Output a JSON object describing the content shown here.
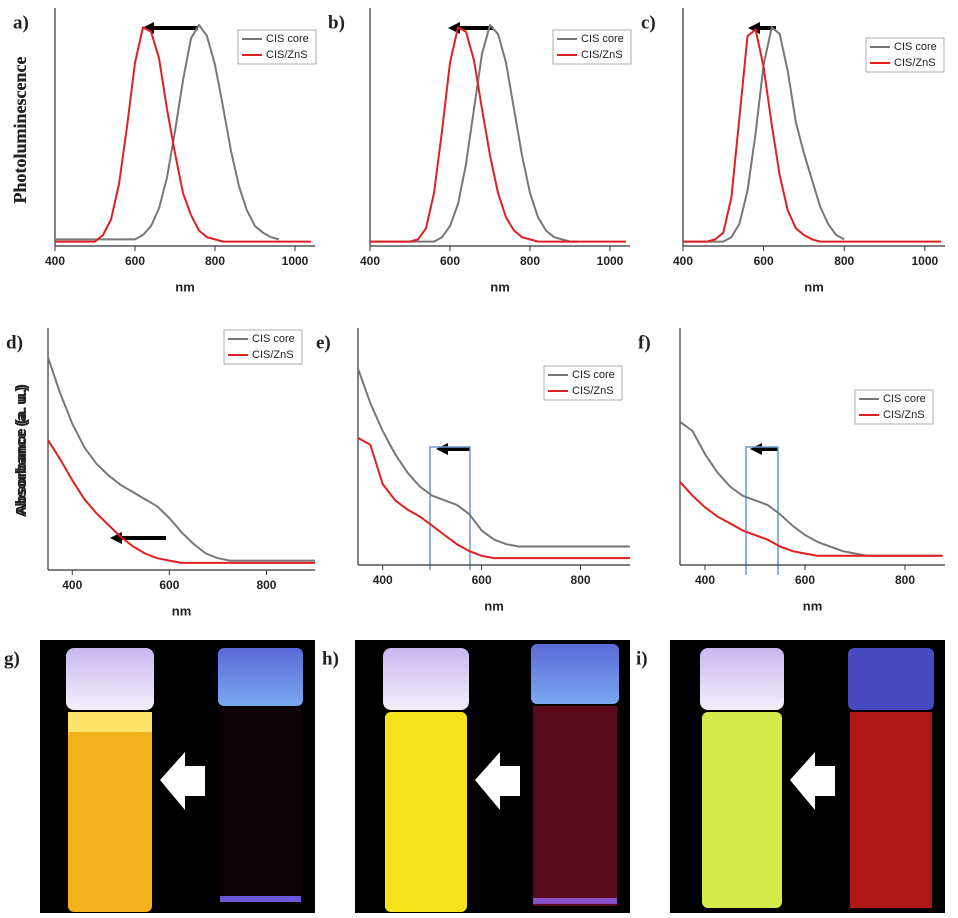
{
  "chart_data": [
    {
      "type": "line",
      "label": "a)",
      "ylabel": "Photoluminescence",
      "xlabel": "nm",
      "x": [
        400,
        420,
        440,
        460,
        480,
        500,
        520,
        540,
        560,
        580,
        600,
        620,
        640,
        660,
        680,
        700,
        720,
        740,
        760,
        780,
        800,
        820,
        840,
        860,
        880,
        900,
        920,
        940,
        960,
        980,
        1000,
        1020,
        1040
      ],
      "xlim": [
        400,
        1050
      ],
      "xticks": [
        400,
        600,
        800,
        1000
      ],
      "ylim": [
        0,
        1.05
      ],
      "series": [
        {
          "name": "CIS core",
          "color": "#777777",
          "values": [
            0.03,
            0.03,
            0.03,
            0.03,
            0.03,
            0.03,
            0.03,
            0.03,
            0.03,
            0.03,
            0.03,
            0.05,
            0.09,
            0.17,
            0.31,
            0.52,
            0.75,
            0.94,
            1.0,
            0.95,
            0.82,
            0.63,
            0.43,
            0.27,
            0.16,
            0.09,
            0.06,
            0.04,
            0.03,
            null,
            null,
            null,
            null
          ]
        },
        {
          "name": "CIS/ZnS",
          "color": "#e02020",
          "values": [
            0.02,
            0.02,
            0.02,
            0.02,
            0.02,
            0.02,
            0.05,
            0.12,
            0.28,
            0.54,
            0.83,
            0.99,
            0.97,
            0.85,
            0.62,
            0.42,
            0.24,
            0.14,
            0.07,
            0.04,
            0.03,
            0.02,
            0.02,
            0.02,
            0.02,
            0.02,
            0.02,
            0.02,
            0.02,
            0.02,
            0.02,
            0.02,
            0.02
          ]
        }
      ]
    },
    {
      "type": "line",
      "label": "b)",
      "ylabel": "Photoluminescence",
      "xlabel": "nm",
      "x": [
        400,
        420,
        440,
        460,
        480,
        500,
        520,
        540,
        560,
        580,
        600,
        620,
        640,
        660,
        680,
        700,
        720,
        740,
        760,
        780,
        800,
        820,
        840,
        860,
        880,
        900,
        920,
        940,
        960,
        980,
        1000,
        1020,
        1040
      ],
      "xlim": [
        400,
        1050
      ],
      "xticks": [
        400,
        600,
        800,
        1000
      ],
      "ylim": [
        0,
        1.05
      ],
      "series": [
        {
          "name": "CIS core",
          "color": "#777777",
          "values": [
            0.02,
            0.02,
            0.02,
            0.02,
            0.02,
            0.02,
            0.02,
            0.02,
            0.02,
            0.04,
            0.09,
            0.19,
            0.37,
            0.62,
            0.87,
            1.0,
            0.96,
            0.83,
            0.62,
            0.41,
            0.24,
            0.13,
            0.07,
            0.04,
            0.03,
            0.02,
            0.02,
            null,
            null,
            null,
            null,
            null,
            null
          ]
        },
        {
          "name": "CIS/ZnS",
          "color": "#e02020",
          "values": [
            0.02,
            0.02,
            0.02,
            0.02,
            0.02,
            0.02,
            0.03,
            0.08,
            0.24,
            0.52,
            0.83,
            0.99,
            0.97,
            0.84,
            0.62,
            0.41,
            0.24,
            0.13,
            0.07,
            0.04,
            0.03,
            0.02,
            0.02,
            0.02,
            0.02,
            0.02,
            0.02,
            0.02,
            0.02,
            0.02,
            0.02,
            0.02,
            0.02
          ]
        }
      ]
    },
    {
      "type": "line",
      "label": "c)",
      "ylabel": "Photoluminescence",
      "xlabel": "nm",
      "x": [
        400,
        420,
        440,
        460,
        480,
        500,
        520,
        540,
        560,
        580,
        600,
        620,
        640,
        660,
        680,
        700,
        720,
        740,
        760,
        780,
        800,
        820,
        840,
        860,
        880,
        900,
        920,
        940,
        960,
        980,
        1000,
        1020,
        1040
      ],
      "xlim": [
        400,
        1050
      ],
      "xticks": [
        400,
        600,
        800,
        1000
      ],
      "ylim": [
        0,
        1.05
      ],
      "series": [
        {
          "name": "CIS core",
          "color": "#777777",
          "values": [
            0.02,
            0.02,
            0.02,
            0.02,
            0.02,
            0.02,
            0.04,
            0.1,
            0.25,
            0.51,
            0.82,
            0.99,
            0.96,
            0.79,
            0.56,
            0.42,
            0.3,
            0.18,
            0.1,
            0.05,
            0.03,
            null,
            null,
            null,
            null,
            null,
            null,
            null,
            null,
            null,
            null,
            null,
            null
          ]
        },
        {
          "name": "CIS/ZnS",
          "color": "#e02020",
          "values": [
            0.02,
            0.02,
            0.02,
            0.02,
            0.03,
            0.06,
            0.22,
            0.58,
            0.95,
            0.98,
            0.81,
            0.55,
            0.32,
            0.16,
            0.08,
            0.05,
            0.03,
            0.02,
            0.02,
            0.02,
            0.02,
            0.02,
            0.02,
            0.02,
            0.02,
            0.02,
            0.02,
            0.02,
            0.02,
            0.02,
            0.02,
            0.02,
            0.02
          ]
        }
      ]
    },
    {
      "type": "line",
      "label": "d)",
      "ylabel": "Absorbance (a. u.)",
      "xlabel": "nm",
      "x": [
        350,
        375,
        400,
        425,
        450,
        475,
        500,
        525,
        550,
        575,
        600,
        625,
        650,
        675,
        700,
        725,
        750,
        775,
        800,
        825,
        850,
        875,
        900
      ],
      "xlim": [
        350,
        900
      ],
      "xticks": [
        400,
        600,
        800
      ],
      "ylim": [
        0,
        1.0
      ],
      "series": [
        {
          "name": "CIS core",
          "color": "#777777",
          "values": [
            0.9,
            0.75,
            0.62,
            0.52,
            0.45,
            0.4,
            0.36,
            0.33,
            0.3,
            0.27,
            0.22,
            0.16,
            0.11,
            0.07,
            0.05,
            0.04,
            0.04,
            0.04,
            0.04,
            0.04,
            0.04,
            0.04,
            0.04
          ]
        },
        {
          "name": "CIS/ZnS",
          "color": "#e02020",
          "values": [
            0.55,
            0.47,
            0.38,
            0.3,
            0.24,
            0.19,
            0.14,
            0.1,
            0.07,
            0.05,
            0.04,
            0.03,
            0.03,
            0.03,
            0.03,
            0.03,
            0.03,
            0.03,
            0.03,
            0.03,
            0.03,
            0.03,
            0.03
          ]
        }
      ]
    },
    {
      "type": "line",
      "label": "e)",
      "ylabel": "Absorbance (a. u.)",
      "xlabel": "nm",
      "x": [
        350,
        375,
        400,
        425,
        450,
        475,
        500,
        525,
        550,
        575,
        600,
        625,
        650,
        675,
        700,
        725,
        750,
        775,
        800,
        825,
        850,
        875,
        900
      ],
      "xlim": [
        350,
        900
      ],
      "xticks": [
        400,
        600,
        800
      ],
      "ylim": [
        0,
        1.0
      ],
      "series": [
        {
          "name": "CIS core",
          "color": "#777777",
          "values": [
            0.85,
            0.7,
            0.58,
            0.48,
            0.4,
            0.34,
            0.3,
            0.28,
            0.26,
            0.22,
            0.15,
            0.11,
            0.09,
            0.08,
            0.08,
            0.08,
            0.08,
            0.08,
            0.08,
            0.08,
            0.08,
            0.08,
            0.08
          ]
        },
        {
          "name": "CIS/ZnS",
          "color": "#e02020",
          "values": [
            0.55,
            0.52,
            0.35,
            0.28,
            0.24,
            0.21,
            0.17,
            0.13,
            0.09,
            0.06,
            0.04,
            0.03,
            0.03,
            0.03,
            0.03,
            0.03,
            0.03,
            0.03,
            0.03,
            0.03,
            0.03,
            0.03,
            0.03
          ]
        }
      ]
    },
    {
      "type": "line",
      "label": "f)",
      "ylabel": "Absorbance (a. u.)",
      "xlabel": "nm",
      "x": [
        350,
        375,
        400,
        425,
        450,
        475,
        500,
        525,
        550,
        575,
        600,
        625,
        650,
        675,
        700,
        725,
        750,
        775,
        800,
        825,
        850,
        875
      ],
      "xlim": [
        350,
        880
      ],
      "xticks": [
        400,
        600,
        800
      ],
      "ylim": [
        0,
        1.0
      ],
      "series": [
        {
          "name": "CIS core",
          "color": "#777777",
          "values": [
            0.62,
            0.58,
            0.48,
            0.4,
            0.34,
            0.3,
            0.28,
            0.26,
            0.22,
            0.17,
            0.13,
            0.1,
            0.08,
            0.06,
            0.05,
            0.04,
            0.04,
            0.04,
            0.04,
            0.04,
            0.04,
            0.04
          ]
        },
        {
          "name": "CIS/ZnS",
          "color": "#e02020",
          "values": [
            0.36,
            0.3,
            0.25,
            0.21,
            0.18,
            0.15,
            0.13,
            0.11,
            0.08,
            0.06,
            0.05,
            0.04,
            0.04,
            0.04,
            0.04,
            0.04,
            0.04,
            0.04,
            0.04,
            0.04,
            0.04,
            0.04
          ]
        }
      ]
    }
  ],
  "photos": [
    {
      "label": "g)"
    },
    {
      "label": "h)"
    },
    {
      "label": "i)"
    }
  ]
}
